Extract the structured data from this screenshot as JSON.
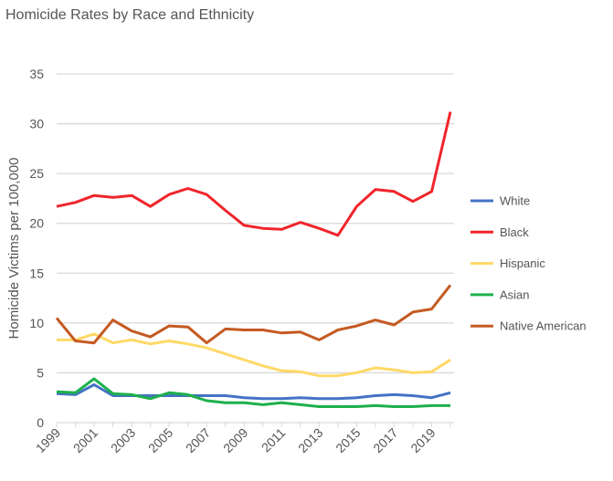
{
  "chart_data": {
    "type": "line",
    "title": "Homicide Rates by Race and Ethnicity",
    "xlabel": "",
    "ylabel": "Homicide Victims per 100,000",
    "ylim": [
      0,
      35
    ],
    "yticks": [
      0,
      5,
      10,
      15,
      20,
      25,
      30,
      35
    ],
    "xtick_labels": [
      "1999",
      "2001",
      "2003",
      "2005",
      "2007",
      "2009",
      "2011",
      "2013",
      "2015",
      "2017",
      "2019"
    ],
    "grid": "horizontal",
    "legend": "right",
    "x": [
      1999,
      2000,
      2001,
      2002,
      2003,
      2004,
      2005,
      2006,
      2007,
      2008,
      2009,
      2010,
      2011,
      2012,
      2013,
      2014,
      2015,
      2016,
      2017,
      2018,
      2019,
      2020
    ],
    "series": [
      {
        "name": "White",
        "color": "#4472c4",
        "values": [
          2.9,
          2.8,
          3.8,
          2.7,
          2.7,
          2.7,
          2.7,
          2.7,
          2.7,
          2.7,
          2.5,
          2.4,
          2.4,
          2.5,
          2.4,
          2.4,
          2.5,
          2.7,
          2.8,
          2.7,
          2.5,
          3.0
        ]
      },
      {
        "name": "Black",
        "color": "#f0252b",
        "values": [
          21.7,
          22.1,
          22.8,
          22.6,
          22.8,
          21.7,
          22.9,
          23.5,
          22.9,
          21.3,
          19.8,
          19.5,
          19.4,
          20.1,
          19.5,
          18.8,
          21.7,
          23.4,
          23.2,
          22.2,
          23.2,
          31.2
        ]
      },
      {
        "name": "Hispanic",
        "color": "#ffd966",
        "values": [
          8.3,
          8.3,
          8.9,
          8.0,
          8.3,
          7.9,
          8.2,
          7.9,
          7.5,
          6.9,
          6.3,
          5.7,
          5.2,
          5.1,
          4.7,
          4.7,
          5.0,
          5.5,
          5.3,
          5.0,
          5.1,
          6.3
        ]
      },
      {
        "name": "Asian",
        "color": "#1db04b",
        "values": [
          3.1,
          3.0,
          4.4,
          2.9,
          2.8,
          2.4,
          3.0,
          2.8,
          2.2,
          2.0,
          2.0,
          1.8,
          2.0,
          1.8,
          1.6,
          1.6,
          1.6,
          1.7,
          1.6,
          1.6,
          1.7,
          1.7
        ]
      },
      {
        "name": "Native American",
        "color": "#c55a22",
        "values": [
          10.5,
          8.2,
          8.0,
          10.3,
          9.2,
          8.6,
          9.7,
          9.6,
          8.0,
          9.4,
          9.3,
          9.3,
          9.0,
          9.1,
          8.3,
          9.3,
          9.7,
          10.3,
          9.8,
          11.1,
          11.4,
          13.8
        ]
      }
    ]
  }
}
